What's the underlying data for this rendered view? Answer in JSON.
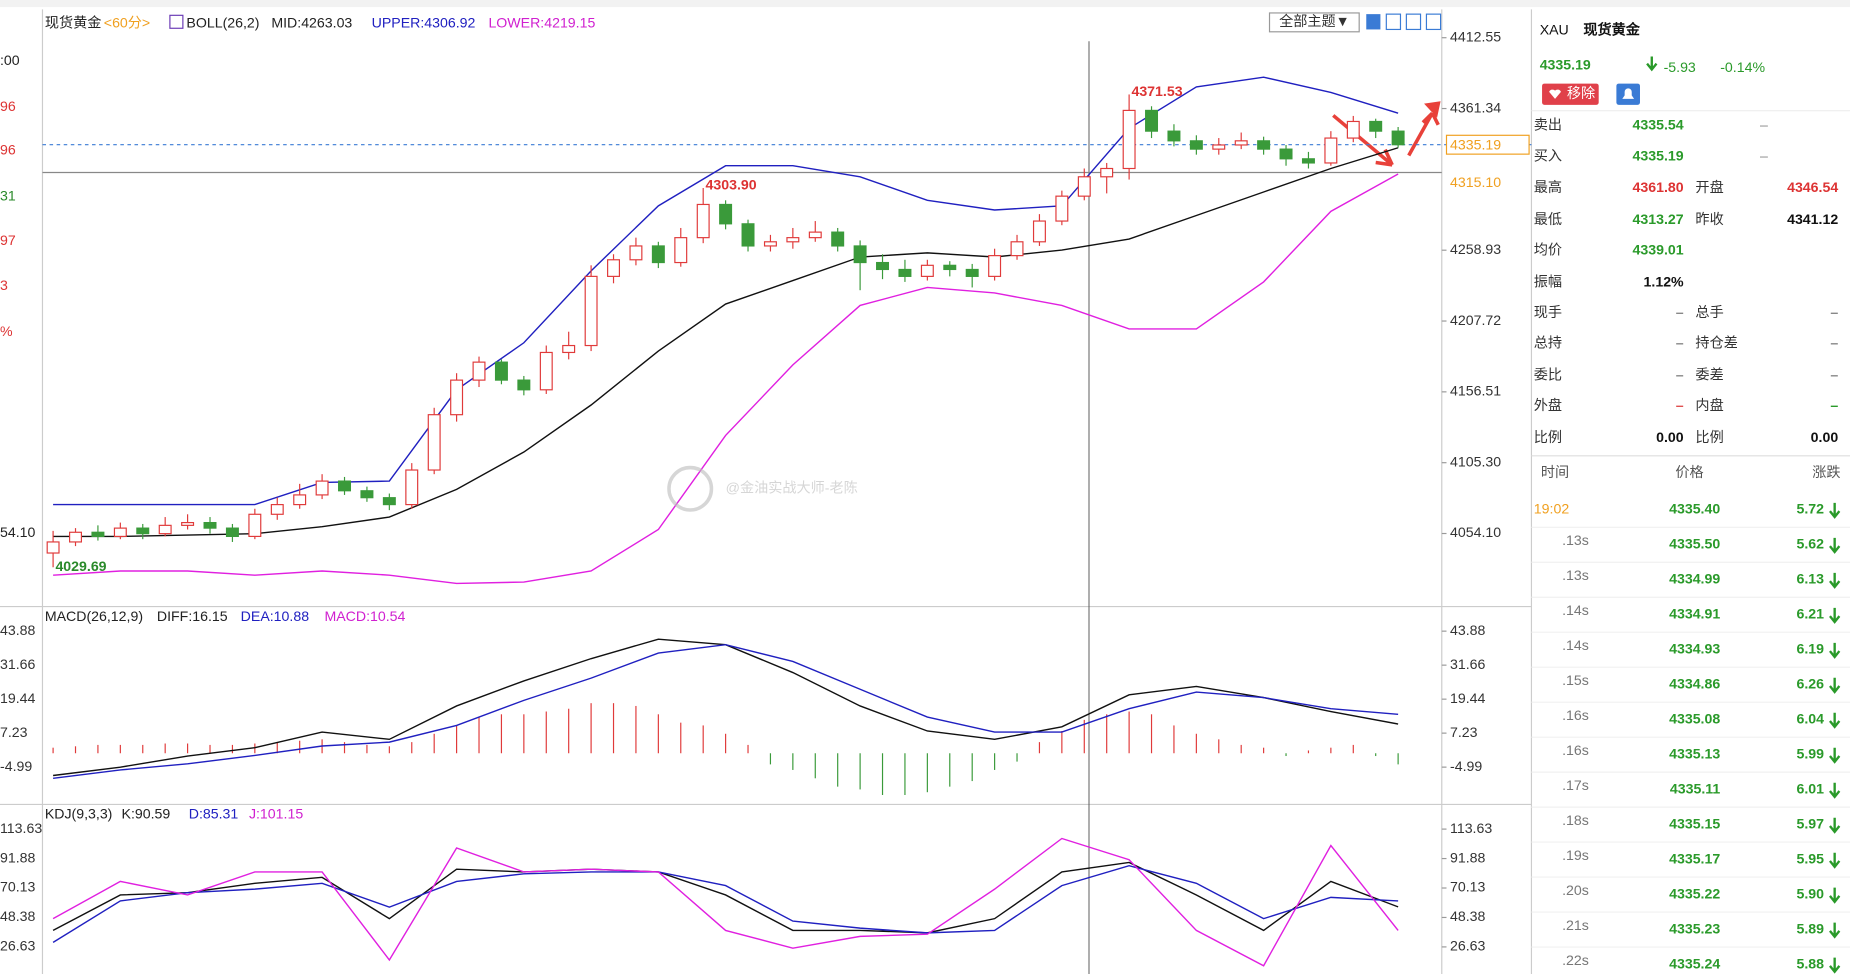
{
  "chart_header": {
    "symbol": "现货黄金",
    "period": "<60分>",
    "boll": "BOLL(26,2)",
    "mid": "MID:4263.03",
    "upper": "UPPER:4306.92",
    "lower": "LOWER:4219.15",
    "theme": "全部主题▼"
  },
  "left_edge": [
    ":00",
    "96",
    "96",
    "31",
    "97",
    "3",
    "%",
    "54.10"
  ],
  "kline": {
    "ylim": [
      4001.3,
      4431.3
    ],
    "yticks": [
      4412.55,
      4361.34,
      4258.93,
      4207.72,
      4156.51,
      {
        "value": 4105.3,
        "label": "4105.30"
      },
      {
        "value": 4054.1,
        "label": "4054.10"
      }
    ],
    "last_price": 4335.19,
    "ref_price": {
      "value": 4315.1,
      "label": "4315.10"
    },
    "extremes": [
      4371.53,
      {
        "value": 4303.9,
        "label": "4303.90"
      },
      4029.69
    ],
    "candles": [
      [
        4040,
        4056,
        4029.69,
        4048
      ],
      [
        4048,
        4058,
        4045,
        4055
      ],
      [
        4055,
        4060,
        4049,
        4052
      ],
      [
        4052,
        4062,
        4050,
        4058
      ],
      [
        4058,
        4061,
        4050,
        4054
      ],
      [
        4054,
        4066,
        4052,
        4060
      ],
      [
        4060,
        4068,
        4057,
        4062
      ],
      [
        4062,
        4066,
        4054,
        4058
      ],
      [
        4058,
        4061,
        4048,
        4052
      ],
      [
        4052,
        4072,
        4050,
        4068
      ],
      [
        4068,
        4080,
        4064,
        4075
      ],
      [
        4075,
        4090,
        4072,
        4082
      ],
      [
        4082,
        4097,
        4079,
        4092
      ],
      [
        4092,
        4095,
        4082,
        4085
      ],
      [
        4085,
        4088,
        4077,
        4080
      ],
      [
        4080,
        4083,
        4071,
        4075
      ],
      [
        4075,
        4105,
        4072,
        4100
      ],
      [
        4100,
        4145,
        4097,
        4140
      ],
      [
        4140,
        4170,
        4135,
        4165
      ],
      [
        4165,
        4182,
        4160,
        4178
      ],
      [
        4178,
        4180,
        4162,
        4165
      ],
      [
        4165,
        4168,
        4154,
        4158
      ],
      [
        4158,
        4190,
        4155,
        4185
      ],
      [
        4185,
        4200,
        4180,
        4190
      ],
      [
        4190,
        4248,
        4186,
        4240
      ],
      [
        4240,
        4256,
        4235,
        4252
      ],
      [
        4252,
        4268,
        4248,
        4262
      ],
      [
        4262,
        4265,
        4246,
        4250
      ],
      [
        4250,
        4275,
        4247,
        4268
      ],
      [
        4268,
        4303.9,
        4264,
        4292
      ],
      [
        4292,
        4295,
        4274,
        4278
      ],
      [
        4278,
        4281,
        4258,
        4262
      ],
      [
        4262,
        4270,
        4258,
        4265
      ],
      [
        4265,
        4275,
        4260,
        4268
      ],
      [
        4268,
        4280,
        4265,
        4272
      ],
      [
        4272,
        4275,
        4258,
        4262
      ],
      [
        4262,
        4266,
        4230,
        4250
      ],
      [
        4250,
        4256,
        4238,
        4245
      ],
      [
        4245,
        4252,
        4236,
        4240
      ],
      [
        4240,
        4252,
        4237,
        4248
      ],
      [
        4248,
        4251,
        4240,
        4245
      ],
      [
        4245,
        4249,
        4232,
        4240
      ],
      [
        4240,
        4260,
        4237,
        4255
      ],
      [
        4255,
        4270,
        4252,
        4265
      ],
      [
        4265,
        4285,
        4262,
        4280
      ],
      [
        4280,
        4302,
        4277,
        4298
      ],
      [
        4298,
        4318,
        4295,
        4312
      ],
      [
        4312,
        4322,
        4300,
        4318
      ],
      [
        4318,
        4371.53,
        4310,
        4360
      ],
      [
        4360,
        4363,
        4340,
        4345
      ],
      [
        4345,
        4350,
        4334,
        4338
      ],
      [
        4338,
        4342,
        4328,
        4332
      ],
      [
        4332,
        4340,
        4328,
        4335
      ],
      [
        4335,
        4344,
        4332,
        4338
      ],
      [
        4338,
        4341,
        4328,
        4332
      ],
      [
        4332,
        4335,
        4320,
        4325
      ],
      [
        4325,
        4330,
        4318,
        4322
      ],
      [
        4322,
        4345,
        4320,
        4340
      ],
      [
        4340,
        4356,
        4337,
        4352
      ],
      [
        4352,
        4354,
        4340,
        4345
      ],
      [
        4345,
        4348,
        4333,
        4335.19
      ]
    ],
    "upper": [
      4075,
      4075,
      4075,
      4075,
      4091,
      4092,
      4158,
      4192,
      4244,
      4291,
      4320,
      4320,
      4312,
      4295,
      4288,
      4291,
      4347,
      4377,
      4384,
      4373,
      4358
    ],
    "mid": [
      4052,
      4052,
      4053,
      4054,
      4059,
      4066,
      4086,
      4113,
      4147,
      4186,
      4220,
      4237,
      4254,
      4257,
      4254,
      4259,
      4267,
      4284,
      4301,
      4318,
      4333
    ],
    "lower": [
      4024,
      4027,
      4027,
      4024,
      4027,
      4024,
      4018,
      4019,
      4027,
      4057,
      4125,
      4176,
      4219,
      4232,
      4228,
      4219,
      4202,
      4202,
      4236,
      4287,
      4314
    ]
  },
  "macd": {
    "label": "MACD(26,12,9)",
    "diff_label": "DIFF:16.15",
    "dea_label": "DEA:10.88",
    "macd_label": "MACD:10.54",
    "ylim": [
      -17.96,
      52.3
    ],
    "yticks": [
      43.88,
      31.66,
      19.44,
      7.23,
      -4.99
    ],
    "hist": [
      2,
      2.5,
      3,
      3,
      3,
      3.5,
      3.5,
      3,
      3,
      3.5,
      4,
      4.5,
      5,
      4,
      3,
      2.5,
      4,
      7,
      10,
      13,
      14,
      14,
      15,
      16,
      18,
      18,
      17,
      14,
      11,
      10,
      7,
      3,
      -4,
      -6,
      -9,
      -12,
      -13,
      -15,
      -15,
      -14,
      -12,
      -10,
      -6,
      -3,
      4,
      8,
      12,
      14,
      15,
      14,
      10,
      7,
      5,
      3,
      2,
      -1,
      1,
      2,
      3,
      -1,
      -4
    ],
    "diff": [
      -8,
      -5,
      -1,
      2,
      7.6,
      5,
      17,
      26,
      34,
      41,
      39,
      29,
      17,
      8,
      5,
      9.5,
      21,
      24,
      20,
      15,
      10.5
    ],
    "dea": [
      -9,
      -6,
      -3.8,
      -0.8,
      2.6,
      4,
      10,
      19,
      27,
      36,
      39,
      33,
      23,
      13,
      7.6,
      7.6,
      16,
      22,
      20,
      16,
      14
    ]
  },
  "kdj": {
    "label": "KDJ(9,3,3)",
    "k_label": "K:90.59",
    "d_label": "D:85.31",
    "j_label": "J:101.15",
    "ylim": [
      6.62,
      131
    ],
    "yticks": [
      113.63,
      91.88,
      70.13,
      48.38,
      26.63
    ],
    "k": [
      38.8,
      65,
      66.7,
      73.6,
      78,
      47.5,
      84,
      82,
      84,
      82,
      65,
      38.8,
      38.8,
      37,
      47.5,
      82,
      89,
      65,
      38.8,
      75,
      56.2
    ],
    "d": [
      30,
      60.6,
      66.7,
      69.3,
      73.6,
      56,
      75,
      80.6,
      82,
      82,
      71.9,
      45.7,
      40.5,
      37,
      38.8,
      71.9,
      86.6,
      73.6,
      47.5,
      63.2,
      60.6
    ],
    "j": [
      47.5,
      75,
      65,
      82,
      82,
      17,
      99.7,
      82,
      84,
      82,
      38.8,
      25.7,
      34.4,
      36,
      69.3,
      106.7,
      91,
      38.8,
      12.7,
      101.5,
      38.8
    ]
  },
  "watermark": "@金油实战大师-老陈",
  "quote": {
    "symbol": "XAU",
    "name": "现货黄金",
    "price": "4335.19",
    "change": "-5.93",
    "pct": "-0.14%",
    "remove": "移除",
    "rows": [
      [
        "卖出",
        "4335.54",
        "–"
      ],
      [
        "买入",
        "4335.19",
        "–"
      ],
      [
        "最高",
        "4361.80",
        "开盘",
        "4346.54"
      ],
      [
        "最低",
        "4313.27",
        "昨收",
        "4341.12"
      ],
      [
        "均价",
        "4339.01"
      ],
      [
        "振幅",
        "1.12%"
      ],
      [
        "现手",
        "–",
        "总手",
        "–"
      ],
      [
        "总持",
        "–",
        "持仓差",
        "–"
      ],
      [
        "委比",
        "–",
        "委差",
        "–"
      ],
      [
        "外盘",
        "–",
        "内盘",
        "–"
      ],
      [
        "比例",
        "0.00",
        "比例",
        "0.00"
      ]
    ]
  },
  "trades": {
    "header": [
      "时间",
      "价格",
      "涨跌"
    ],
    "rows": [
      [
        "19:02",
        "4335.40",
        "5.72"
      ],
      [
        ".13s",
        "4335.50",
        "5.62"
      ],
      [
        ".13s",
        "4334.99",
        "6.13"
      ],
      [
        ".14s",
        "4334.91",
        "6.21"
      ],
      [
        ".14s",
        "4334.93",
        "6.19"
      ],
      [
        ".15s",
        "4334.86",
        "6.26"
      ],
      [
        ".16s",
        "4335.08",
        "6.04"
      ],
      [
        ".16s",
        "4335.13",
        "5.99"
      ],
      [
        ".17s",
        "4335.11",
        "6.01"
      ],
      [
        ".18s",
        "4335.15",
        "5.97"
      ],
      [
        ".19s",
        "4335.17",
        "5.95"
      ],
      [
        ".20s",
        "4335.22",
        "5.90"
      ],
      [
        ".21s",
        "4335.23",
        "5.89"
      ],
      [
        ".22s",
        "4335.24",
        "5.88"
      ]
    ]
  }
}
